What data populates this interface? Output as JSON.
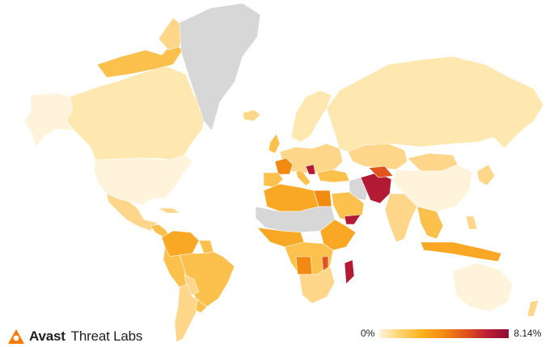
{
  "brand": {
    "name": "Avast",
    "subtitle": "Threat Labs",
    "logo_icon": "avast-logo-icon"
  },
  "legend": {
    "min_label": "0%",
    "max_label": "8.14%",
    "gradient_colors": [
      "#fff3dc",
      "#ffd36b",
      "#fbb11d",
      "#f28a12",
      "#e1541d",
      "#bd1d36",
      "#8e0d33"
    ]
  },
  "colors": {
    "no_data": "#d7d7d7",
    "very_low": "#fff3dc",
    "low": "#ffe7b0",
    "low_mid": "#ffd68a",
    "mid": "#fcc04c",
    "mid_high": "#f9a825",
    "high": "#f28a12",
    "very_high": "#e1541d",
    "max": "#b31b35",
    "border": "#ffffff"
  }
}
